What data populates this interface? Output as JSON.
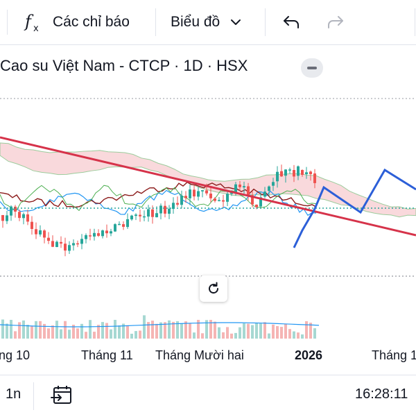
{
  "toolbar": {
    "indicators_label": "Các chỉ báo",
    "chart_type_label": "Biểu đồ"
  },
  "legend": {
    "symbol_title": "Cao su Việt Nam - CTCP · 1D · HSX"
  },
  "x_axis": {
    "labels": [
      "ng 10",
      "Tháng 11",
      "Tháng Mười hai",
      "2026",
      "Tháng 1"
    ]
  },
  "bottom": {
    "period": "1n",
    "clock": "16:28:11"
  },
  "colors": {
    "up": "#26a69a",
    "down": "#ef5350",
    "trendline": "#d6334a",
    "projection": "#2c5fd8",
    "cloud": "#f7c9cd",
    "conversion": "#2196f3",
    "base": "#8b1a1a",
    "lagging": "#4caf50"
  },
  "icons": [
    "fx-icon",
    "chevron-down-icon",
    "undo-icon",
    "redo-icon",
    "minus-icon",
    "reset-icon",
    "goto-date-icon"
  ]
}
